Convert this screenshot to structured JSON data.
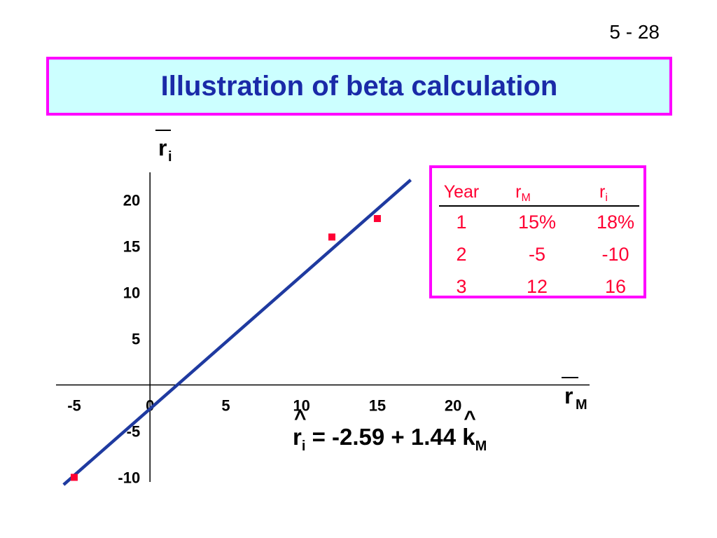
{
  "page_number": "5 - 28",
  "title": "Illustration of beta calculation",
  "chart_data": {
    "type": "scatter",
    "title": "Illustration of beta calculation",
    "xlabel": "r",
    "xlabel_sub": "M",
    "ylabel": "r",
    "ylabel_sub": "i",
    "xlim": [
      -6.2,
      29
    ],
    "ylim": [
      -10.5,
      23
    ],
    "x_ticks": [
      "-5",
      "0",
      "5",
      "10",
      "15",
      "20"
    ],
    "y_ticks": [
      "20",
      "15",
      "10",
      "5",
      "-5",
      "-10"
    ],
    "points": [
      {
        "x": 15,
        "y": 18
      },
      {
        "x": -5,
        "y": -10
      },
      {
        "x": 12,
        "y": 16
      }
    ],
    "regression": {
      "intercept": -2.59,
      "slope": 1.44,
      "x_range": [
        -5.7,
        17.2
      ]
    },
    "colors": {
      "line": "#1f3aa0",
      "points": "#ff0033",
      "axes": "#000000"
    }
  },
  "table": {
    "headers": [
      {
        "main": "Year",
        "sub": ""
      },
      {
        "main": "r",
        "sub": "M"
      },
      {
        "main": "r",
        "sub": "i"
      }
    ],
    "rows": [
      [
        "1",
        "15%",
        "18%"
      ],
      [
        "2",
        "-5",
        "-10"
      ],
      [
        "3",
        "12",
        "16"
      ]
    ],
    "color": "#ff0033"
  },
  "equation": {
    "lhs_symbol": "r",
    "lhs_sub": "i",
    "middle": " = -2.59 + 1.44 ",
    "rhs_symbol": "k",
    "rhs_sub": "M",
    "hat": "^"
  }
}
